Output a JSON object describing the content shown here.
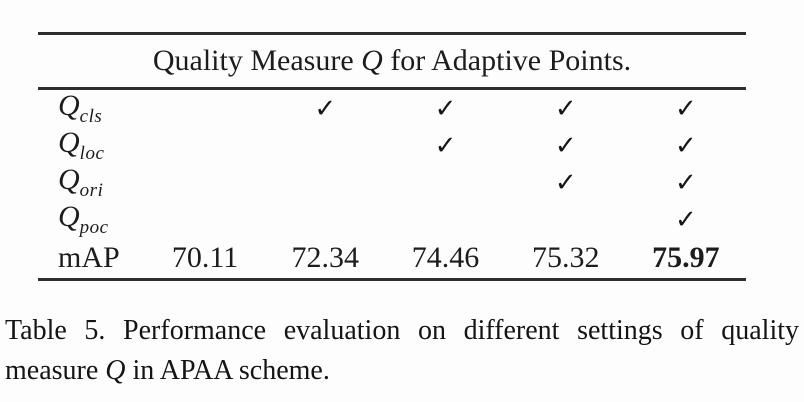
{
  "colors": {
    "text": "#1c1c1c",
    "rule": "#2e2e2e",
    "background": "#fdfdfd"
  },
  "table": {
    "header": {
      "pre": "Quality Measure ",
      "math": "Q",
      "post": " for Adaptive Points."
    },
    "check_char": "✓",
    "check_rows": [
      {
        "sym": "Q",
        "sub": "cls",
        "cells": [
          "",
          "✓",
          "✓",
          "✓",
          "✓"
        ]
      },
      {
        "sym": "Q",
        "sub": "loc",
        "cells": [
          "",
          "",
          "✓",
          "✓",
          "✓"
        ]
      },
      {
        "sym": "Q",
        "sub": "ori",
        "cells": [
          "",
          "",
          "",
          "✓",
          "✓"
        ]
      },
      {
        "sym": "Q",
        "sub": "poc",
        "cells": [
          "",
          "",
          "",
          "",
          "✓"
        ]
      }
    ],
    "map_row": {
      "label": "mAP",
      "values": [
        "70.11",
        "72.34",
        "74.46",
        "75.32",
        "75.97"
      ]
    }
  },
  "caption": {
    "line1": "Table 5.  Performance evaluation on different settings of quality",
    "line2_pre": "measure ",
    "line2_math": "Q",
    "line2_post": " in APAA scheme."
  },
  "chart_data": {
    "type": "table",
    "title": "Quality Measure Q for Adaptive Points.",
    "row_labels": [
      "Q_cls",
      "Q_loc",
      "Q_ori",
      "Q_poc",
      "mAP"
    ],
    "columns": [
      {
        "Q_cls": false,
        "Q_loc": false,
        "Q_ori": false,
        "Q_poc": false,
        "mAP": 70.11
      },
      {
        "Q_cls": true,
        "Q_loc": false,
        "Q_ori": false,
        "Q_poc": false,
        "mAP": 72.34
      },
      {
        "Q_cls": true,
        "Q_loc": true,
        "Q_ori": false,
        "Q_poc": false,
        "mAP": 74.46
      },
      {
        "Q_cls": true,
        "Q_loc": true,
        "Q_ori": true,
        "Q_poc": false,
        "mAP": 75.32
      },
      {
        "Q_cls": true,
        "Q_loc": true,
        "Q_ori": true,
        "Q_poc": true,
        "mAP": 75.97
      }
    ],
    "best_mAP": 75.97,
    "caption": "Table 5. Performance evaluation on different settings of quality measure Q in APAA scheme."
  }
}
